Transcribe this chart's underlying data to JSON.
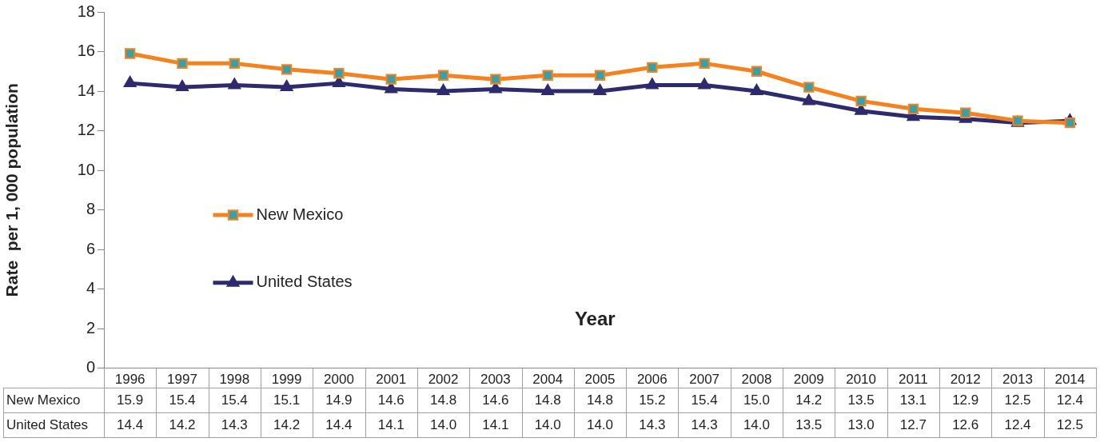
{
  "chart_data": {
    "type": "line",
    "xlabel": "Year",
    "ylabel": "Rate  per 1, 000 population",
    "categories": [
      "1996",
      "1997",
      "1998",
      "1999",
      "2000",
      "2001",
      "2002",
      "2003",
      "2004",
      "2005",
      "2006",
      "2007",
      "2008",
      "2009",
      "2010",
      "2011",
      "2012",
      "2013",
      "2014"
    ],
    "series": [
      {
        "name": "New Mexico",
        "color": "#f5821f",
        "marker": "square",
        "values": [
          15.9,
          15.4,
          15.4,
          15.1,
          14.9,
          14.6,
          14.8,
          14.6,
          14.8,
          14.8,
          15.2,
          15.4,
          15.0,
          14.2,
          13.5,
          13.1,
          12.9,
          12.5,
          12.4
        ],
        "value_labels": [
          "15.9",
          "15.4",
          "15.4",
          "15.1",
          "14.9",
          "14.6",
          "14.8",
          "14.6",
          "14.8",
          "14.8",
          "15.2",
          "15.4",
          "15.0",
          "14.2",
          "13.5",
          "13.1",
          "12.9",
          "12.5",
          "12.4"
        ]
      },
      {
        "name": "United States",
        "color": "#2e2a6e",
        "marker": "triangle",
        "values": [
          14.4,
          14.2,
          14.3,
          14.2,
          14.4,
          14.1,
          14.0,
          14.1,
          14.0,
          14.0,
          14.3,
          14.3,
          14.0,
          13.5,
          13.0,
          12.7,
          12.6,
          12.4,
          12.5
        ],
        "value_labels": [
          "14.4",
          "14.2",
          "14.3",
          "14.2",
          "14.4",
          "14.1",
          "14.0",
          "14.1",
          "14.0",
          "14.0",
          "14.3",
          "14.3",
          "14.0",
          "13.5",
          "13.0",
          "12.7",
          "12.6",
          "12.4",
          "12.5"
        ]
      }
    ],
    "ylim": [
      0,
      18
    ],
    "yticks": [
      0,
      2,
      4,
      6,
      8,
      10,
      12,
      14,
      16,
      18
    ],
    "grid": false,
    "legend": "left",
    "line_style": "solid"
  }
}
